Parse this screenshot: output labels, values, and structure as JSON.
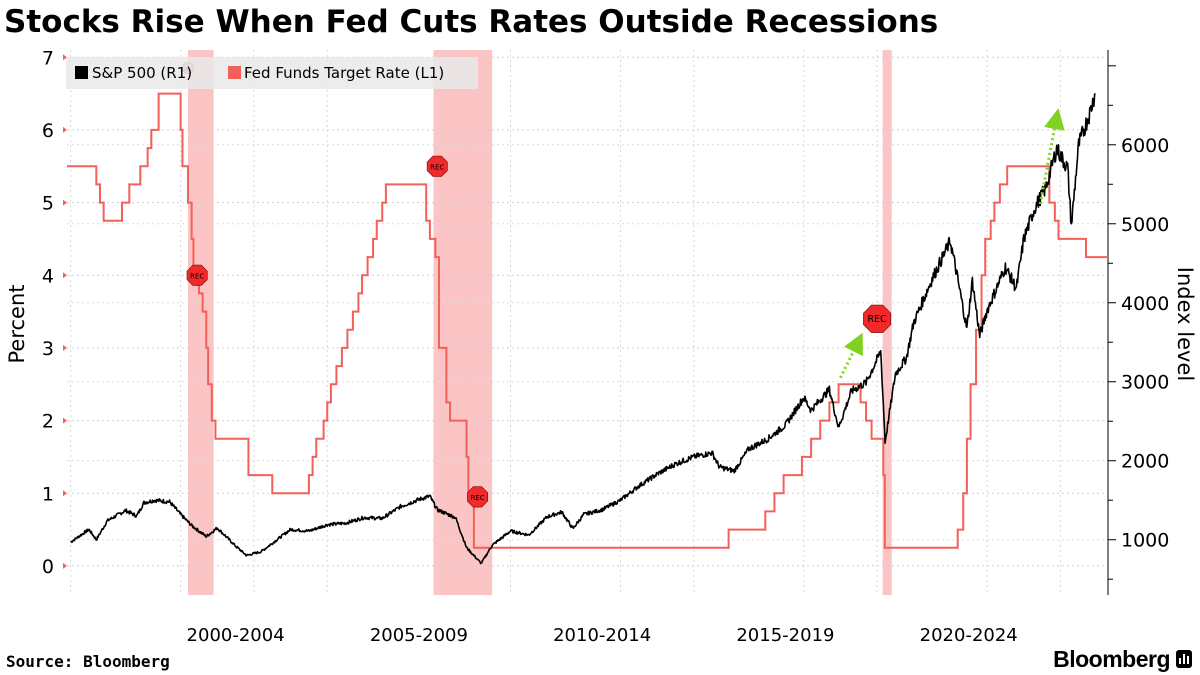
{
  "title": "Stocks Rise When Fed Cuts Rates Outside Recessions",
  "source": "Source: Bloomberg",
  "brand": "Bloomberg",
  "chart_data": {
    "type": "line",
    "title": "Stocks Rise When Fed Cuts Rates Outside Recessions",
    "y_left_label": "Percent",
    "y_right_label": "Index level",
    "y_left_ticks": [
      "0",
      "1",
      "2",
      "3",
      "4",
      "5",
      "6",
      "7"
    ],
    "y_right_ticks": [
      "1000",
      "2000",
      "3000",
      "4000",
      "5000",
      "6000"
    ],
    "x_tick_labels": [
      "2000-2004",
      "2005-2009",
      "2010-2014",
      "2015-2019",
      "2020-2024"
    ],
    "x_range": [
      1997.9,
      2026.3
    ],
    "y_left_range": [
      -0.4,
      7.1
    ],
    "y_right_range": [
      300,
      7200
    ],
    "grid": true,
    "legend_position": "top-left",
    "recession_label": "REC",
    "recessions": [
      [
        2001.2,
        2001.9
      ],
      [
        2007.9,
        2009.5
      ],
      [
        2020.15,
        2020.4
      ]
    ],
    "series": [
      {
        "name": "S&P 500 (R1)",
        "axis": "right",
        "color": "#000000",
        "points": [
          [
            1998.0,
            970
          ],
          [
            1998.5,
            1130
          ],
          [
            1998.7,
            1000
          ],
          [
            1999.0,
            1240
          ],
          [
            1999.5,
            1370
          ],
          [
            1999.8,
            1300
          ],
          [
            2000.0,
            1470
          ],
          [
            2000.3,
            1500
          ],
          [
            2000.7,
            1480
          ],
          [
            2001.0,
            1320
          ],
          [
            2001.3,
            1180
          ],
          [
            2001.7,
            1040
          ],
          [
            2002.0,
            1150
          ],
          [
            2002.5,
            920
          ],
          [
            2002.8,
            800
          ],
          [
            2003.2,
            850
          ],
          [
            2003.6,
            990
          ],
          [
            2004.0,
            1130
          ],
          [
            2004.5,
            1110
          ],
          [
            2005.0,
            1190
          ],
          [
            2005.5,
            1210
          ],
          [
            2006.0,
            1280
          ],
          [
            2006.5,
            1270
          ],
          [
            2007.0,
            1420
          ],
          [
            2007.5,
            1510
          ],
          [
            2007.8,
            1550
          ],
          [
            2008.0,
            1380
          ],
          [
            2008.5,
            1280
          ],
          [
            2008.8,
            900
          ],
          [
            2009.2,
            700
          ],
          [
            2009.5,
            930
          ],
          [
            2010.0,
            1110
          ],
          [
            2010.5,
            1060
          ],
          [
            2011.0,
            1290
          ],
          [
            2011.4,
            1350
          ],
          [
            2011.7,
            1140
          ],
          [
            2012.0,
            1320
          ],
          [
            2012.5,
            1380
          ],
          [
            2013.0,
            1500
          ],
          [
            2013.5,
            1680
          ],
          [
            2014.0,
            1830
          ],
          [
            2014.5,
            1960
          ],
          [
            2015.0,
            2050
          ],
          [
            2015.5,
            2100
          ],
          [
            2015.7,
            1920
          ],
          [
            2016.1,
            1870
          ],
          [
            2016.5,
            2150
          ],
          [
            2017.0,
            2270
          ],
          [
            2017.5,
            2450
          ],
          [
            2018.0,
            2800
          ],
          [
            2018.2,
            2640
          ],
          [
            2018.7,
            2900
          ],
          [
            2018.95,
            2420
          ],
          [
            2019.3,
            2880
          ],
          [
            2019.7,
            2990
          ],
          [
            2020.1,
            3380
          ],
          [
            2020.22,
            2240
          ],
          [
            2020.5,
            3100
          ],
          [
            2020.8,
            3300
          ],
          [
            2021.0,
            3750
          ],
          [
            2021.5,
            4300
          ],
          [
            2022.0,
            4780
          ],
          [
            2022.2,
            4300
          ],
          [
            2022.45,
            3670
          ],
          [
            2022.6,
            4280
          ],
          [
            2022.8,
            3580
          ],
          [
            2023.0,
            3900
          ],
          [
            2023.5,
            4450
          ],
          [
            2023.8,
            4180
          ],
          [
            2024.0,
            4800
          ],
          [
            2024.3,
            5200
          ],
          [
            2024.6,
            5450
          ],
          [
            2024.9,
            5950
          ],
          [
            2025.2,
            5700
          ],
          [
            2025.3,
            4980
          ],
          [
            2025.5,
            6000
          ],
          [
            2025.8,
            6400
          ],
          [
            2025.95,
            6650
          ]
        ]
      },
      {
        "name": "Fed Funds Target Rate (L1)",
        "axis": "left",
        "color": "#f3605a",
        "steps": [
          [
            1997.9,
            5.5
          ],
          [
            1998.7,
            5.25
          ],
          [
            1998.8,
            5.0
          ],
          [
            1998.9,
            4.75
          ],
          [
            1999.4,
            5.0
          ],
          [
            1999.6,
            5.25
          ],
          [
            1999.9,
            5.5
          ],
          [
            2000.1,
            5.75
          ],
          [
            2000.2,
            6.0
          ],
          [
            2000.4,
            6.5
          ],
          [
            2001.0,
            6.0
          ],
          [
            2001.05,
            5.5
          ],
          [
            2001.2,
            5.0
          ],
          [
            2001.3,
            4.5
          ],
          [
            2001.35,
            4.0
          ],
          [
            2001.5,
            3.75
          ],
          [
            2001.6,
            3.5
          ],
          [
            2001.7,
            3.0
          ],
          [
            2001.75,
            2.5
          ],
          [
            2001.85,
            2.0
          ],
          [
            2001.95,
            1.75
          ],
          [
            2002.85,
            1.25
          ],
          [
            2003.5,
            1.0
          ],
          [
            2004.5,
            1.25
          ],
          [
            2004.6,
            1.5
          ],
          [
            2004.7,
            1.75
          ],
          [
            2004.9,
            2.0
          ],
          [
            2005.0,
            2.25
          ],
          [
            2005.1,
            2.5
          ],
          [
            2005.25,
            2.75
          ],
          [
            2005.4,
            3.0
          ],
          [
            2005.55,
            3.25
          ],
          [
            2005.7,
            3.5
          ],
          [
            2005.85,
            3.75
          ],
          [
            2005.95,
            4.0
          ],
          [
            2006.1,
            4.25
          ],
          [
            2006.25,
            4.5
          ],
          [
            2006.35,
            4.75
          ],
          [
            2006.5,
            5.0
          ],
          [
            2006.6,
            5.25
          ],
          [
            2007.7,
            4.75
          ],
          [
            2007.8,
            4.5
          ],
          [
            2007.95,
            4.25
          ],
          [
            2008.05,
            3.0
          ],
          [
            2008.25,
            2.25
          ],
          [
            2008.35,
            2.0
          ],
          [
            2008.8,
            1.5
          ],
          [
            2008.85,
            1.0
          ],
          [
            2009.0,
            0.25
          ],
          [
            2015.95,
            0.5
          ],
          [
            2016.95,
            0.75
          ],
          [
            2017.2,
            1.0
          ],
          [
            2017.45,
            1.25
          ],
          [
            2017.95,
            1.5
          ],
          [
            2018.2,
            1.75
          ],
          [
            2018.45,
            2.0
          ],
          [
            2018.7,
            2.25
          ],
          [
            2018.95,
            2.5
          ],
          [
            2019.55,
            2.25
          ],
          [
            2019.7,
            2.0
          ],
          [
            2019.85,
            1.75
          ],
          [
            2020.17,
            1.25
          ],
          [
            2020.21,
            0.25
          ],
          [
            2022.2,
            0.5
          ],
          [
            2022.35,
            1.0
          ],
          [
            2022.45,
            1.75
          ],
          [
            2022.55,
            2.5
          ],
          [
            2022.7,
            3.25
          ],
          [
            2022.85,
            4.0
          ],
          [
            2022.95,
            4.5
          ],
          [
            2023.1,
            4.75
          ],
          [
            2023.2,
            5.0
          ],
          [
            2023.35,
            5.25
          ],
          [
            2023.55,
            5.5
          ],
          [
            2024.7,
            5.0
          ],
          [
            2024.85,
            4.75
          ],
          [
            2024.95,
            4.5
          ],
          [
            2025.7,
            4.25
          ],
          [
            2026.3,
            4.25
          ]
        ]
      }
    ]
  }
}
